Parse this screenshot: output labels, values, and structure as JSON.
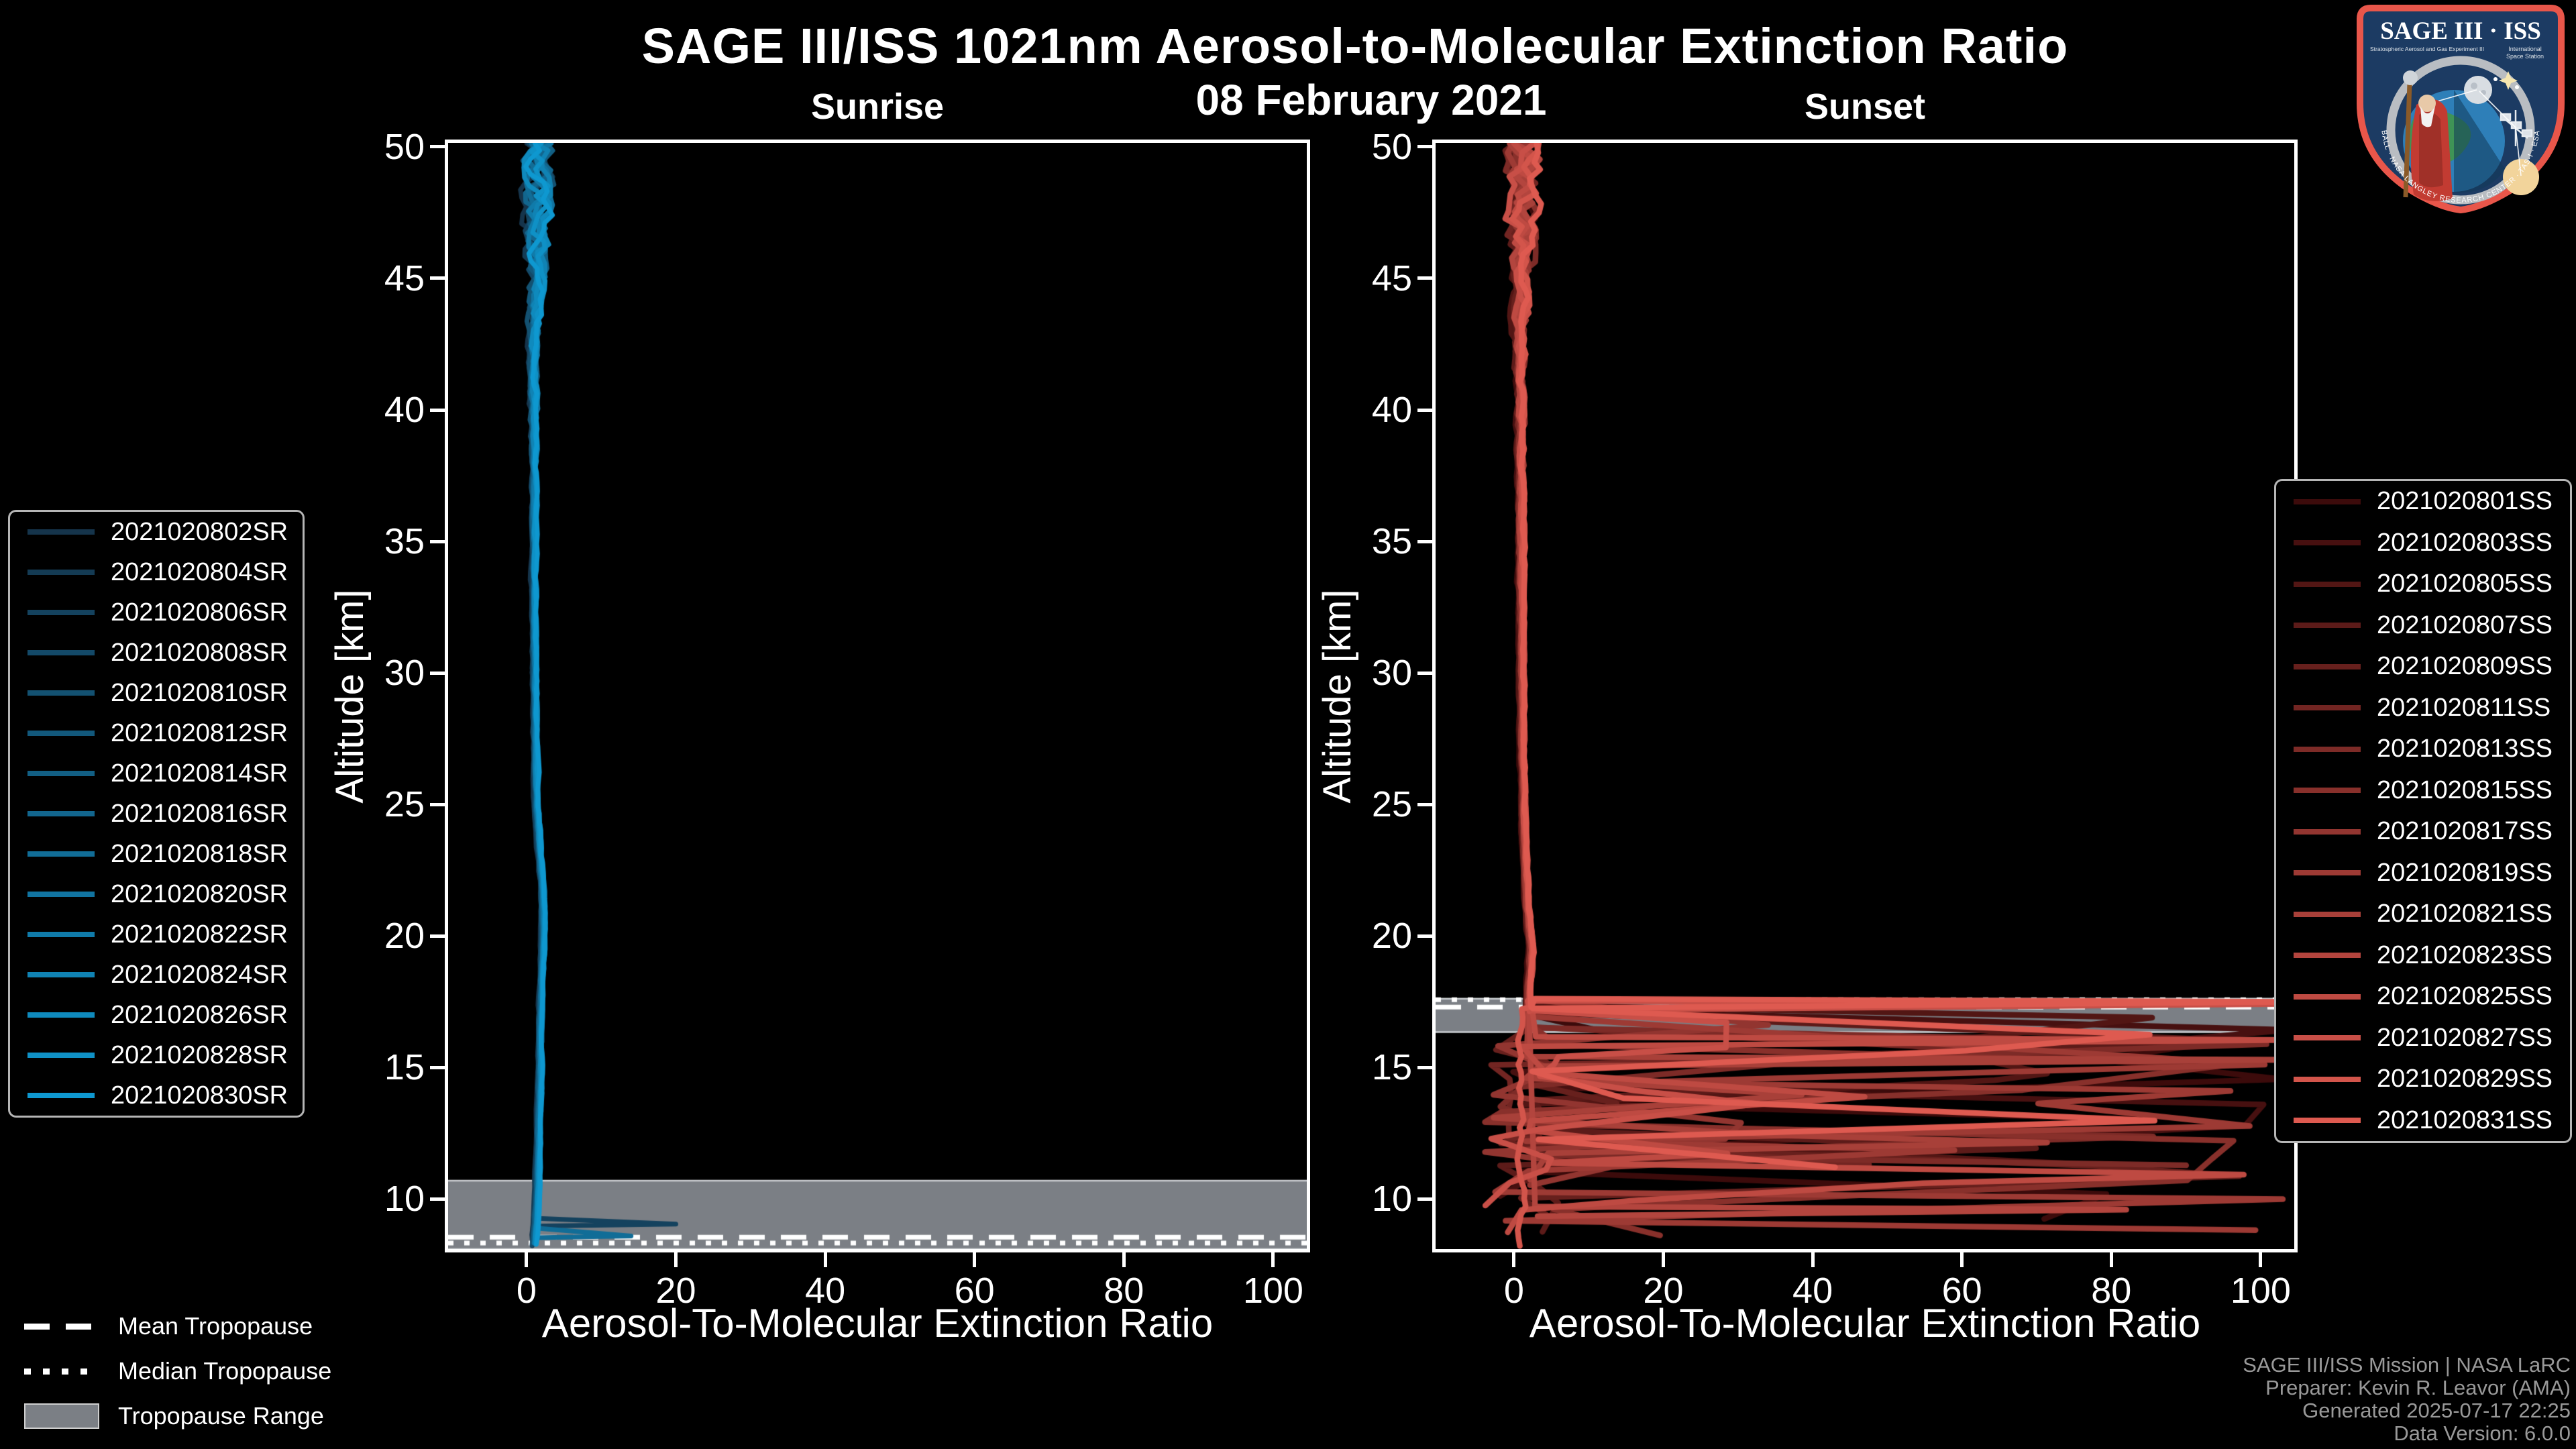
{
  "header": {
    "title": "SAGE III/ISS 1021nm Aerosol-to-Molecular Extinction Ratio",
    "date": "08 February 2021"
  },
  "footer": {
    "lines": [
      "SAGE III/ISS Mission | NASA LaRC",
      "Preparer: Kevin R. Leavor (AMA)",
      "Generated 2025-07-17 22:25",
      "Data Version: 6.0.0"
    ]
  },
  "logo": {
    "title": "SAGE III · ISS",
    "sub1": "Stratospheric Aerosol and Gas Experiment III",
    "sub2a": "International",
    "sub2b": "Space Station",
    "ring_text": "BALL · NASA LANGLEY RESEARCH CENTER · TAS-I · ESA"
  },
  "tropopause_legend": {
    "mean": "Mean Tropopause",
    "median": "Median Tropopause",
    "range": "Tropopause Range"
  },
  "colors": {
    "background": "#000000",
    "axis": "#ffffff",
    "tropopause_band": "#7b7f85",
    "tropopause_band_edge": "#cdd0d4",
    "tropopause_line": "#ffffff",
    "footer_text": "#999999",
    "legend_border": "#b5b5b5"
  },
  "chart_data": {
    "type": "line",
    "title": "SAGE III/ISS 1021nm Aerosol-to-Molecular Extinction Ratio",
    "subtitle": "08 February 2021",
    "legend_position": "outside-left / outside-right",
    "grid": false,
    "panels": [
      {
        "id": "sunrise",
        "title": "Sunrise",
        "xlabel": "Aerosol-To-Molecular Extinction Ratio",
        "ylabel": "Altitude [km]",
        "xlim": [
          -10.5,
          104.5
        ],
        "ylim": [
          8.1,
          50.15
        ],
        "xticks": [
          0,
          20,
          40,
          60,
          80,
          100
        ],
        "yticks": [
          10,
          15,
          20,
          25,
          30,
          35,
          40,
          45,
          50
        ],
        "tropopause": {
          "mean_km": 8.55,
          "median_km": 8.33,
          "range_km": [
            8.1,
            10.7
          ]
        },
        "series": [
          {
            "name": "2021020802SR",
            "color": "#15344B"
          },
          {
            "name": "2021020804SR",
            "color": "#143B54"
          },
          {
            "name": "2021020806SR",
            "color": "#14425E"
          },
          {
            "name": "2021020808SR",
            "color": "#134968"
          },
          {
            "name": "2021020810SR",
            "color": "#135171"
          },
          {
            "name": "2021020812SR",
            "color": "#12587B"
          },
          {
            "name": "2021020814SR",
            "color": "#125F84"
          },
          {
            "name": "2021020816SR",
            "color": "#12668E"
          },
          {
            "name": "2021020818SR",
            "color": "#116D97"
          },
          {
            "name": "2021020820SR",
            "color": "#1174A1"
          },
          {
            "name": "2021020822SR",
            "color": "#107BAA"
          },
          {
            "name": "2021020824SR",
            "color": "#1083B4"
          },
          {
            "name": "2021020826SR",
            "color": "#0F8ABD"
          },
          {
            "name": "2021020828SR",
            "color": "#0F91C6"
          },
          {
            "name": "2021020830SR",
            "color": "#0E98D0"
          }
        ],
        "profile": {
          "seed": 20210208,
          "line_width": 7,
          "anchors": [
            [
              50.2,
              1.7
            ],
            [
              48,
              1.5
            ],
            [
              46,
              1.35
            ],
            [
              44,
              1.15
            ],
            [
              42,
              1.05
            ],
            [
              40,
              1.0
            ],
            [
              36,
              1.0
            ],
            [
              32,
              1.05
            ],
            [
              28,
              1.15
            ],
            [
              25,
              1.35
            ],
            [
              23,
              1.8
            ],
            [
              21.5,
              2.2
            ],
            [
              20,
              2.25
            ],
            [
              18,
              2.0
            ],
            [
              16,
              1.85
            ],
            [
              14,
              1.75
            ],
            [
              12,
              1.6
            ],
            [
              10.5,
              1.45
            ],
            [
              9.5,
              1.3
            ],
            [
              8.8,
              1.15
            ],
            [
              8.1,
              1.0
            ]
          ],
          "noise_by_alt": [
            [
              50.2,
              2.0
            ],
            [
              47,
              1.6
            ],
            [
              45,
              1.0
            ],
            [
              42,
              0.5
            ],
            [
              38,
              0.25
            ],
            [
              30,
              0.15
            ],
            [
              8.1,
              0.12
            ]
          ],
          "bottom_min": 8.12,
          "bottom_max": 8.4,
          "spikes": [
            {
              "series": 2,
              "alt": 9.05,
              "peak": 20
            },
            {
              "series": 4,
              "alt": 8.38,
              "peak": 40
            },
            {
              "series": 8,
              "alt": 8.6,
              "peak": 14
            },
            {
              "series": 11,
              "alt": 8.3,
              "peak": 24
            },
            {
              "series": 13,
              "alt": 8.45,
              "peak": 10
            }
          ]
        }
      },
      {
        "id": "sunset",
        "title": "Sunset",
        "xlabel": "Aerosol-To-Molecular Extinction Ratio",
        "ylabel": "Altitude [km]",
        "xlim": [
          -10.5,
          104.5
        ],
        "ylim": [
          8.1,
          50.15
        ],
        "xticks": [
          0,
          20,
          40,
          60,
          80,
          100
        ],
        "yticks": [
          10,
          15,
          20,
          25,
          30,
          35,
          40,
          45,
          50
        ],
        "tropopause": {
          "mean_km": 17.3,
          "median_km": 17.58,
          "range_km": [
            16.35,
            17.62
          ]
        },
        "series": [
          {
            "name": "2021020801SS",
            "color": "#3C0B0B"
          },
          {
            "name": "2021020803SS",
            "color": "#471010"
          },
          {
            "name": "2021020805SS",
            "color": "#521614"
          },
          {
            "name": "2021020807SS",
            "color": "#5C1B19"
          },
          {
            "name": "2021020809SS",
            "color": "#67201D"
          },
          {
            "name": "2021020811SS",
            "color": "#722522"
          },
          {
            "name": "2021020813SS",
            "color": "#7D2B27"
          },
          {
            "name": "2021020815SS",
            "color": "#88302B"
          },
          {
            "name": "2021020817SS",
            "color": "#923530"
          },
          {
            "name": "2021020819SS",
            "color": "#9D3A34"
          },
          {
            "name": "2021020821SS",
            "color": "#A84039"
          },
          {
            "name": "2021020823SS",
            "color": "#B3453E"
          },
          {
            "name": "2021020825SS",
            "color": "#BE4A42"
          },
          {
            "name": "2021020827SS",
            "color": "#C84F47"
          },
          {
            "name": "2021020829SS",
            "color": "#D3554B"
          },
          {
            "name": "2021020831SS",
            "color": "#DE5A50"
          }
        ],
        "profile": {
          "seed": 20210209,
          "line_width": 8.5,
          "anchors": [
            [
              50.2,
              1.2
            ],
            [
              48,
              1.1
            ],
            [
              46,
              1.0
            ],
            [
              44,
              0.95
            ],
            [
              42,
              0.9
            ],
            [
              40,
              0.9
            ],
            [
              36,
              0.95
            ],
            [
              32,
              1.0
            ],
            [
              28,
              1.1
            ],
            [
              24,
              1.3
            ],
            [
              21,
              1.8
            ],
            [
              19.5,
              2.3
            ],
            [
              18.5,
              2.1
            ],
            [
              18,
              1.9
            ]
          ],
          "noise_by_alt": [
            [
              50.2,
              2.4
            ],
            [
              47,
              1.8
            ],
            [
              45,
              1.1
            ],
            [
              42,
              0.55
            ],
            [
              38,
              0.3
            ],
            [
              30,
              0.18
            ],
            [
              18,
              0.15
            ]
          ],
          "chaos": {
            "start_min": 16.3,
            "start_max": 17.7,
            "bottom_min": 8.25,
            "bottom_max": 12.0,
            "big_prob": 0.52,
            "calm_series": [
              14
            ],
            "forced": {
              "15": [
                [
                  17.5,
                  104.3
                ]
              ],
              "13": [
                [
                  17.42,
                  104.3
                ]
              ],
              "12": [
                [
                  16.05,
                  104.3
                ]
              ],
              "11": [
                [
                  9.6,
                  82
                ]
              ],
              "10": [
                [
                  15.3,
                  104.3
                ]
              ]
            }
          }
        }
      }
    ]
  }
}
